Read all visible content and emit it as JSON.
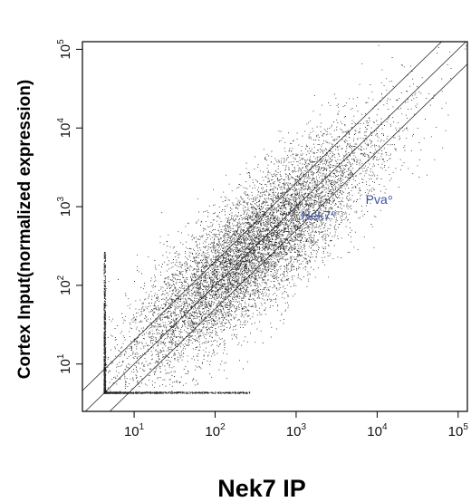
{
  "chart_data": {
    "type": "scatter",
    "xlabel": "Nek7 IP",
    "ylabel": "Cortex Input(normalized expression)",
    "x_scale": "log10",
    "y_scale": "log10",
    "xlim": [
      2.3,
      130000
    ],
    "ylim": [
      2.5,
      125000
    ],
    "x_ticks": [
      {
        "value": 10,
        "base": "10",
        "exp": "1"
      },
      {
        "value": 100,
        "base": "10",
        "exp": "2"
      },
      {
        "value": 1000,
        "base": "10",
        "exp": "3"
      },
      {
        "value": 10000,
        "base": "10",
        "exp": "4"
      },
      {
        "value": 100000,
        "base": "10",
        "exp": "5"
      }
    ],
    "y_ticks": [
      {
        "value": 10,
        "base": "10",
        "exp": "1"
      },
      {
        "value": 100,
        "base": "10",
        "exp": "2"
      },
      {
        "value": 1000,
        "base": "10",
        "exp": "3"
      },
      {
        "value": 10000,
        "base": "10",
        "exp": "4"
      },
      {
        "value": 100000,
        "base": "10",
        "exp": "5"
      }
    ],
    "grid": false,
    "point_color": "#000000",
    "annotation_color": "#3a52a0",
    "floor_value": 4.2,
    "cloud": {
      "n_points": 9000,
      "center_log10": 2.45,
      "spread_along_log10": 0.75,
      "spread_across_log10": 0.3
    },
    "reference_lines": [
      {
        "name": "y = x",
        "fold": 1
      },
      {
        "name": "2-fold up",
        "fold": 2
      },
      {
        "name": "2-fold down",
        "fold": 0.5
      }
    ],
    "highlighted_points": [
      {
        "label": "Nek7",
        "x": 2900,
        "y": 820
      },
      {
        "label": "Pva",
        "x": 14500,
        "y": 1300
      }
    ]
  }
}
